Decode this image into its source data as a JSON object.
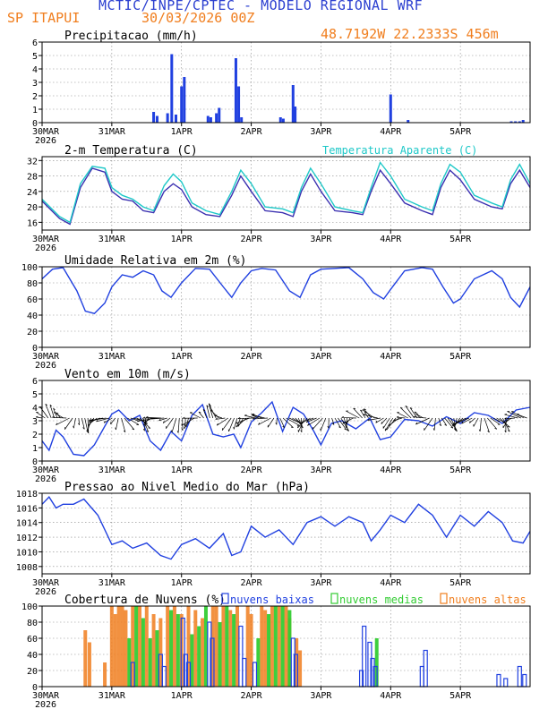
{
  "header": {
    "line1": "MCTIC/INPE/CPTEC - MODELO REGIONAL WRF",
    "station": "SP ITAPUI",
    "run": "30/03/2026 00Z",
    "coords": "48.7192W 22.2333S 456m"
  },
  "colors": {
    "title": "#2b3fd0",
    "orange": "#f07e1e",
    "cyan": "#1ec8c8",
    "blue": "#2040e0",
    "green": "#33cc33",
    "black": "#000000"
  },
  "x_axis": {
    "range_days": [
      0,
      7.0
    ],
    "ticks": [
      {
        "pos": 0,
        "label": "30MAR",
        "year": "2026"
      },
      {
        "pos": 1,
        "label": "31MAR"
      },
      {
        "pos": 2,
        "label": "1APR"
      },
      {
        "pos": 3,
        "label": "2APR"
      },
      {
        "pos": 4,
        "label": "3APR"
      },
      {
        "pos": 5,
        "label": "4APR"
      },
      {
        "pos": 6,
        "label": "5APR"
      }
    ]
  },
  "chart_data": [
    {
      "type": "bar",
      "title": "Precipitacao (mm/h)",
      "ylim": [
        0,
        6
      ],
      "yticks": [
        0,
        1,
        2,
        3,
        4,
        5,
        6
      ],
      "x": [
        1.6,
        1.65,
        1.8,
        1.86,
        1.92,
        2.0,
        2.04,
        2.38,
        2.42,
        2.5,
        2.54,
        2.78,
        2.82,
        2.86,
        3.42,
        3.46,
        3.6,
        3.63,
        5.0,
        5.25,
        6.73,
        6.79,
        6.85,
        6.9
      ],
      "values": [
        0.8,
        0.5,
        0.7,
        5.1,
        0.6,
        2.7,
        3.4,
        0.5,
        0.4,
        0.7,
        1.1,
        4.8,
        2.7,
        0.4,
        0.4,
        0.3,
        2.8,
        1.2,
        2.1,
        0.2,
        0.1,
        0.1,
        0.1,
        0.2
      ]
    },
    {
      "type": "line",
      "title": "2-m Temperatura (C)",
      "legend": "Temperatura Aparente (C)",
      "ylim": [
        14,
        33
      ],
      "yticks": [
        16,
        20,
        24,
        28,
        32
      ],
      "series": [
        {
          "name": "2-m Temperatura (C)",
          "x": [
            0,
            0.25,
            0.4,
            0.55,
            0.72,
            0.9,
            1.0,
            1.15,
            1.3,
            1.45,
            1.6,
            1.75,
            1.88,
            2.0,
            2.15,
            2.35,
            2.55,
            2.72,
            2.85,
            3.0,
            3.2,
            3.45,
            3.6,
            3.72,
            3.85,
            4.0,
            4.2,
            4.45,
            4.6,
            4.72,
            4.85,
            5.0,
            5.2,
            5.45,
            5.6,
            5.72,
            5.85,
            6.0,
            6.2,
            6.45,
            6.6,
            6.72,
            6.85,
            7.0
          ],
          "values": [
            21.5,
            17,
            15.5,
            25,
            30,
            29,
            24,
            22,
            21.5,
            19,
            18.5,
            24,
            26,
            24.5,
            20,
            18,
            17.5,
            23,
            28,
            24,
            19,
            18.5,
            17.5,
            24,
            28.5,
            24,
            19,
            18.5,
            18,
            24,
            29.5,
            26,
            21,
            19,
            18,
            25,
            29.5,
            27,
            22,
            20,
            19.5,
            26,
            29.5,
            25
          ]
        },
        {
          "name": "Temperatura Aparente (C)",
          "x": [
            0,
            0.25,
            0.4,
            0.55,
            0.72,
            0.9,
            1.0,
            1.15,
            1.3,
            1.45,
            1.6,
            1.75,
            1.88,
            2.0,
            2.15,
            2.35,
            2.55,
            2.72,
            2.85,
            3.0,
            3.2,
            3.45,
            3.6,
            3.72,
            3.85,
            4.0,
            4.2,
            4.45,
            4.6,
            4.72,
            4.85,
            5.0,
            5.2,
            5.45,
            5.6,
            5.72,
            5.85,
            6.0,
            6.2,
            6.45,
            6.6,
            6.72,
            6.85,
            7.0
          ],
          "values": [
            22,
            17.5,
            16,
            26,
            30.5,
            30,
            25,
            23,
            22,
            20,
            19,
            25.5,
            28.5,
            26.5,
            21,
            19,
            18,
            24,
            29.5,
            26,
            20,
            19.5,
            18.5,
            25,
            30,
            26,
            20,
            19,
            18.5,
            25,
            31.5,
            28,
            22,
            20,
            19,
            26,
            31,
            29,
            23,
            21,
            20,
            27,
            31,
            26
          ]
        }
      ]
    },
    {
      "type": "line",
      "title": "Umidade Relativa em 2m (%)",
      "ylim": [
        0,
        100
      ],
      "yticks": [
        0,
        20,
        40,
        60,
        80,
        100
      ],
      "series": [
        {
          "name": "Umidade Relativa em 2m (%)",
          "x": [
            0,
            0.15,
            0.3,
            0.5,
            0.62,
            0.75,
            0.9,
            1.0,
            1.15,
            1.3,
            1.45,
            1.6,
            1.72,
            1.85,
            2.0,
            2.2,
            2.4,
            2.6,
            2.72,
            2.85,
            3.0,
            3.15,
            3.35,
            3.55,
            3.7,
            3.85,
            4.0,
            4.2,
            4.4,
            4.6,
            4.75,
            4.9,
            5.0,
            5.2,
            5.45,
            5.6,
            5.75,
            5.9,
            6.0,
            6.2,
            6.45,
            6.6,
            6.72,
            6.85,
            7.0
          ],
          "values": [
            85,
            97,
            99,
            70,
            45,
            42,
            55,
            75,
            90,
            87,
            95,
            90,
            70,
            62,
            80,
            98,
            97,
            75,
            62,
            80,
            95,
            98,
            96,
            70,
            62,
            90,
            97,
            98,
            99,
            85,
            68,
            60,
            72,
            95,
            99,
            97,
            75,
            55,
            60,
            85,
            95,
            85,
            62,
            50,
            75
          ]
        }
      ]
    },
    {
      "type": "line",
      "title": "Vento em 10m (m/s)",
      "ylim": [
        0,
        6
      ],
      "yticks": [
        0,
        1,
        2,
        3,
        4,
        5,
        6
      ],
      "series": [
        {
          "name": "Vento em 10m (m/s)",
          "x": [
            0,
            0.1,
            0.2,
            0.3,
            0.45,
            0.6,
            0.75,
            0.9,
            1.0,
            1.1,
            1.25,
            1.4,
            1.55,
            1.7,
            1.85,
            2.0,
            2.15,
            2.3,
            2.45,
            2.6,
            2.75,
            2.85,
            3.0,
            3.15,
            3.3,
            3.45,
            3.6,
            3.75,
            3.9,
            4.0,
            4.15,
            4.3,
            4.5,
            4.7,
            4.85,
            5.0,
            5.2,
            5.4,
            5.6,
            5.8,
            6.0,
            6.2,
            6.4,
            6.6,
            6.8,
            7.0
          ],
          "values": [
            1.5,
            0.8,
            2.3,
            1.8,
            0.5,
            0.4,
            1.2,
            2.6,
            3.5,
            3.8,
            3.0,
            3.4,
            1.5,
            0.8,
            2.2,
            1.5,
            3.4,
            4.2,
            2.0,
            1.8,
            2.0,
            1.0,
            2.9,
            3.6,
            4.4,
            2.2,
            4.0,
            3.5,
            2.2,
            1.2,
            2.8,
            3.0,
            2.4,
            3.2,
            1.6,
            1.8,
            3.1,
            3.0,
            2.6,
            3.3,
            2.8,
            3.6,
            3.4,
            2.8,
            3.8,
            4.0
          ]
        }
      ]
    },
    {
      "type": "line",
      "title": "Pressao ao Nivel Medio do Mar (hPa)",
      "ylim": [
        1007,
        1018
      ],
      "yticks": [
        1008,
        1010,
        1012,
        1014,
        1016,
        1018
      ],
      "series": [
        {
          "name": "Pressao ao Nivel Medio do Mar (hPa)",
          "x": [
            0,
            0.1,
            0.2,
            0.3,
            0.45,
            0.6,
            0.8,
            1.0,
            1.15,
            1.3,
            1.5,
            1.7,
            1.85,
            2.0,
            2.2,
            2.4,
            2.6,
            2.72,
            2.85,
            3.0,
            3.2,
            3.4,
            3.6,
            3.8,
            4.0,
            4.2,
            4.4,
            4.6,
            4.72,
            4.85,
            5.0,
            5.2,
            5.4,
            5.6,
            5.8,
            6.0,
            6.2,
            6.4,
            6.6,
            6.75,
            6.9,
            7.0
          ],
          "values": [
            1016.5,
            1017.5,
            1016,
            1016.5,
            1016.5,
            1017.2,
            1015,
            1011,
            1011.5,
            1010.5,
            1011.2,
            1009.5,
            1009,
            1011,
            1011.8,
            1010.5,
            1012.5,
            1009.5,
            1010,
            1013.5,
            1012,
            1013,
            1011,
            1014,
            1014.8,
            1013.5,
            1014.8,
            1014,
            1011.5,
            1013,
            1015,
            1014,
            1016.5,
            1015,
            1012,
            1015,
            1013.5,
            1015.5,
            1014,
            1011.5,
            1011.2,
            1012.8
          ]
        }
      ]
    },
    {
      "type": "bar",
      "title": "Cobertura de Nuvens (%)",
      "ylim": [
        0,
        100
      ],
      "yticks": [
        0,
        20,
        40,
        60,
        80,
        100
      ],
      "series": [
        {
          "name": "nuvens baixas",
          "x": [
            1.3,
            1.7,
            1.75,
            2.02,
            2.06,
            2.1,
            2.4,
            2.44,
            2.85,
            2.9,
            3.05,
            3.6,
            3.64,
            4.58,
            4.62,
            4.7,
            4.74,
            4.78,
            5.45,
            5.5,
            6.55,
            6.65,
            6.85,
            6.92
          ],
          "values": [
            30,
            40,
            25,
            85,
            40,
            30,
            80,
            60,
            75,
            35,
            30,
            60,
            40,
            20,
            75,
            55,
            35,
            25,
            25,
            45,
            15,
            10,
            25,
            15
          ]
        },
        {
          "name": "nuvens medias",
          "x": [
            1.25,
            1.35,
            1.45,
            1.55,
            1.65,
            1.85,
            1.95,
            2.15,
            2.25,
            2.35,
            2.55,
            2.65,
            2.75,
            3.1,
            3.25,
            3.35,
            3.45,
            3.55,
            4.8
          ],
          "values": [
            60,
            100,
            85,
            60,
            70,
            95,
            90,
            65,
            75,
            100,
            80,
            100,
            90,
            60,
            90,
            100,
            100,
            95,
            60
          ]
        },
        {
          "name": "nuvens altas",
          "x": [
            0.62,
            0.68,
            0.9,
            1.0,
            1.05,
            1.1,
            1.15,
            1.2,
            1.3,
            1.4,
            1.5,
            1.6,
            1.7,
            1.8,
            1.9,
            2.0,
            2.1,
            2.2,
            2.3,
            2.45,
            2.5,
            2.6,
            2.7,
            2.8,
            2.95,
            3.0,
            3.15,
            3.2,
            3.3,
            3.4,
            3.5,
            3.55,
            3.65,
            3.7
          ],
          "values": [
            70,
            55,
            30,
            100,
            90,
            100,
            100,
            95,
            100,
            100,
            100,
            90,
            85,
            100,
            100,
            90,
            100,
            95,
            85,
            100,
            100,
            100,
            95,
            100,
            100,
            90,
            100,
            95,
            100,
            100,
            100,
            85,
            60,
            45
          ]
        }
      ]
    }
  ]
}
